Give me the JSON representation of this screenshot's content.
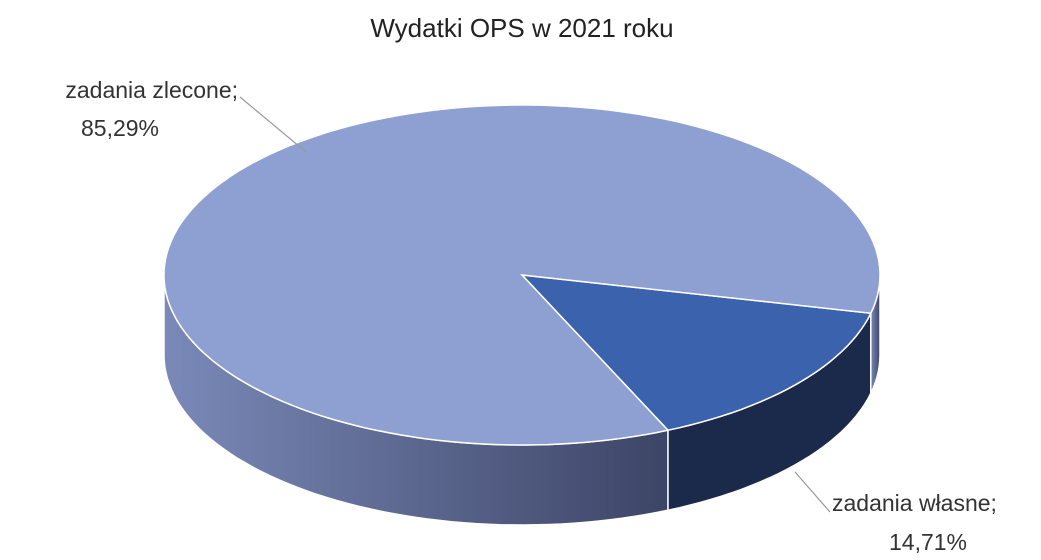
{
  "chart_data": {
    "type": "pie",
    "title": "Wydatki OPS w 2021 roku",
    "categories": [
      "zadania własne;",
      "zadania zlecone;"
    ],
    "values": [
      14.71,
      85.29
    ],
    "value_labels": [
      "14,71%",
      "85,29%"
    ],
    "colors": [
      "#3a62ad",
      "#8e9fd1"
    ],
    "side_colors": [
      "#1b2a4a",
      "#4f5a80"
    ]
  }
}
